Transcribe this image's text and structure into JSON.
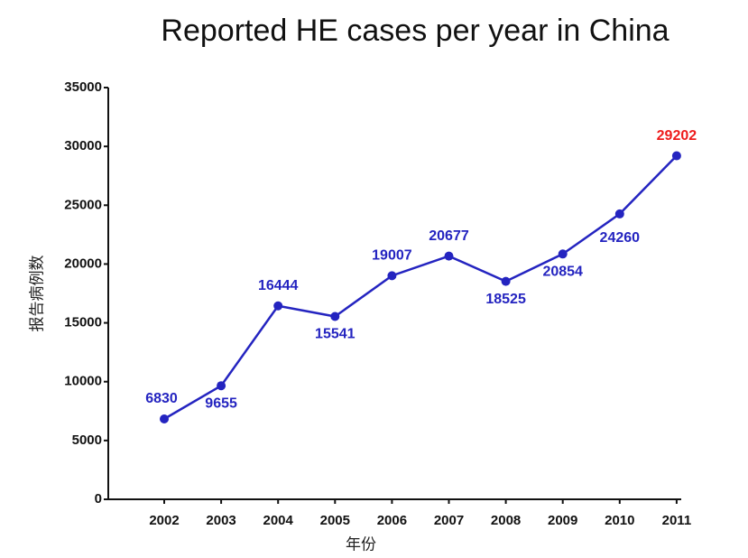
{
  "chart_data": {
    "type": "line",
    "title": "Reported HE cases per year in China",
    "x_label": "年份",
    "y_label": "报告病例数",
    "categories": [
      "2002",
      "2003",
      "2004",
      "2005",
      "2006",
      "2007",
      "2008",
      "2009",
      "2010",
      "2011"
    ],
    "series": [
      {
        "name": "HE cases",
        "color": "#2424c0",
        "values": [
          6830,
          9655,
          16444,
          15541,
          19007,
          20677,
          18525,
          20854,
          24260,
          29202
        ]
      }
    ],
    "data_labels": true,
    "highlight": {
      "index": 9,
      "color": "#ee1c1c"
    },
    "ylim": [
      0,
      35000
    ],
    "yticks": [
      0,
      5000,
      10000,
      15000,
      20000,
      25000,
      30000,
      35000
    ],
    "grid": false,
    "legend": false
  }
}
